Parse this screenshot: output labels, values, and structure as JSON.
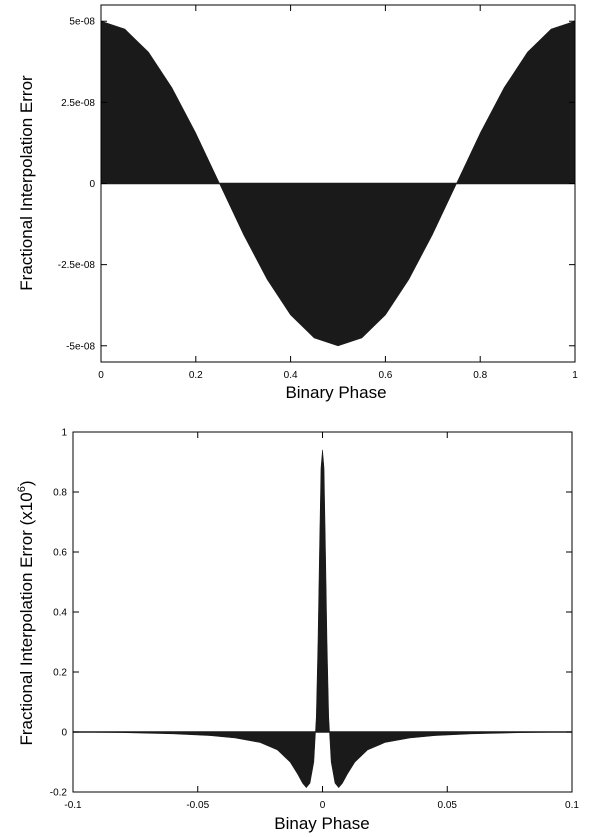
{
  "chart_data": [
    {
      "type": "area",
      "xlabel": "Binary Phase",
      "ylabel": "Fractional Interpolation Error",
      "xlim": [
        0,
        1
      ],
      "ylim": [
        -5.5e-08,
        5.5e-08
      ],
      "xticks": [
        0,
        0.2,
        0.4,
        0.6,
        0.8,
        1
      ],
      "xtick_labels": [
        "0",
        "0.2",
        "0.4",
        "0.6",
        "0.8",
        "1"
      ],
      "yticks": [
        5e-08,
        2.5e-08,
        0,
        -2.5e-08,
        -5e-08
      ],
      "ytick_labels": [
        "5e-08",
        "2.5e-08",
        "0",
        "-2.5e-08",
        "-5e-08"
      ],
      "grid": false,
      "fill_color": "#1a1a1a",
      "series": [
        {
          "x": [
            0,
            0.05,
            0.1,
            0.15,
            0.2,
            0.25,
            0.3,
            0.35,
            0.4,
            0.45,
            0.5,
            0.55,
            0.6,
            0.65,
            0.7,
            0.75,
            0.8,
            0.85,
            0.9,
            0.95,
            1
          ],
          "values": [
            5e-08,
            4.76e-08,
            4.05e-08,
            2.94e-08,
            1.55e-08,
            0,
            -1.55e-08,
            -2.94e-08,
            -4.05e-08,
            -4.76e-08,
            -5e-08,
            -4.76e-08,
            -4.05e-08,
            -2.94e-08,
            -1.55e-08,
            0,
            1.55e-08,
            2.94e-08,
            4.05e-08,
            4.76e-08,
            5e-08
          ]
        }
      ]
    },
    {
      "type": "area",
      "xlabel": "Binay Phase",
      "ylabel_main": "Fractional Interpolation Error (x10",
      "ylabel_sup": "6",
      "ylabel_end": ")",
      "xlim": [
        -0.1,
        0.1
      ],
      "ylim": [
        -0.2,
        1
      ],
      "xticks": [
        -0.1,
        -0.05,
        0,
        0.05,
        0.1
      ],
      "xtick_labels": [
        "-0.1",
        "-0.05",
        "0",
        "0.05",
        "0.1"
      ],
      "yticks": [
        1,
        0.8,
        0.6,
        0.4,
        0.2,
        0,
        -0.2
      ],
      "ytick_labels": [
        "1",
        "0.8",
        "0.6",
        "0.4",
        "0.2",
        "0",
        "-0.2"
      ],
      "grid": false,
      "fill_color": "#1a1a1a",
      "series": [
        {
          "x": [
            -0.1,
            -0.08,
            -0.06,
            -0.045,
            -0.035,
            -0.025,
            -0.018,
            -0.013,
            -0.01,
            -0.008,
            -0.0065,
            -0.005,
            -0.0035,
            -0.0025,
            -0.0018,
            -0.0012,
            -0.0006,
            0,
            0.0006,
            0.0012,
            0.0018,
            0.0025,
            0.0035,
            0.005,
            0.0065,
            0.008,
            0.01,
            0.013,
            0.018,
            0.025,
            0.035,
            0.045,
            0.06,
            0.08,
            0.1
          ],
          "values": [
            0,
            -0.002,
            -0.006,
            -0.012,
            -0.02,
            -0.035,
            -0.06,
            -0.1,
            -0.14,
            -0.17,
            -0.185,
            -0.17,
            -0.1,
            0.05,
            0.3,
            0.6,
            0.88,
            0.94,
            0.88,
            0.6,
            0.3,
            0.05,
            -0.1,
            -0.17,
            -0.185,
            -0.17,
            -0.14,
            -0.1,
            -0.06,
            -0.035,
            -0.02,
            -0.012,
            -0.006,
            -0.002,
            0
          ]
        }
      ]
    }
  ]
}
